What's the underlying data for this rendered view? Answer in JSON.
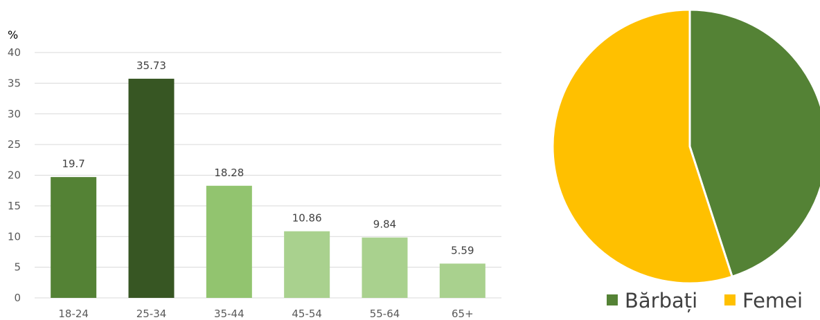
{
  "chart_data": [
    {
      "type": "bar",
      "unit_label": "%",
      "categories": [
        "18-24",
        "25-34",
        "35-44",
        "45-54",
        "55-64",
        "65+"
      ],
      "values": [
        19.7,
        35.73,
        18.28,
        10.86,
        9.84,
        5.59
      ],
      "value_labels": [
        "19.7",
        "35.73",
        "18.28",
        "10.86",
        "9.84",
        "5.59"
      ],
      "bar_colors": [
        "#548235",
        "#375623",
        "#92c46f",
        "#a9d18e",
        "#a9d18e",
        "#a9d18e"
      ],
      "ylim": [
        0,
        40
      ],
      "yticks": [
        "0",
        "5",
        "10",
        "15",
        "20",
        "25",
        "30",
        "35",
        "40"
      ],
      "grid": true,
      "gridline_color": "#d9d9d9"
    },
    {
      "type": "pie",
      "labels": [
        "Bărbați",
        "Femei"
      ],
      "values": [
        45,
        55
      ],
      "colors": [
        "#548235",
        "#ffc000"
      ],
      "legend_placement": "bottom"
    }
  ]
}
